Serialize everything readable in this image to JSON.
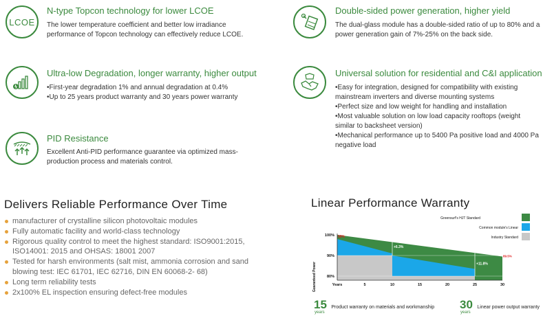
{
  "features": [
    {
      "title": "N-type Topcon technology for lower LCOE",
      "icon": "lcoe-icon",
      "icon_text": "LCOE",
      "body": [
        "The lower temperature coefficient and better low irradiance performance of Topcon technology can effectively reduce LCOE."
      ]
    },
    {
      "title": "Double-sided power generation, higher yield",
      "icon": "bifacial-panel-icon",
      "body": [
        "The dual-glass module has a double-sided ratio of up to 80% and a power generation gain of 7%-25% on the back side."
      ]
    },
    {
      "title": "Ultra-low Degradation, longer warranty, higher output",
      "icon": "degradation-chart-icon",
      "body": [
        "•First-year degradation 1% and annual degradation at 0.4%",
        "•Up to 25 years product warranty and 30 years power warranty"
      ]
    },
    {
      "title": "Universal solution for residential and C&I application",
      "icon": "handshake-icon",
      "body": [
        "•Easy for integration, designed for compatibility with existing mainstream inverters and diverse mounting systems",
        "•Perfect size and low weight for handling and installation",
        "•Most valuable solution on low load capacity rooftops (weight similar to backsheet version)",
        "•Mechanical performance up to 5400 Pa positive load and 4000 Pa negative load"
      ]
    },
    {
      "title": "PID Resistance",
      "icon": "pid-shield-icon",
      "body": [
        "Excellent Anti-PID performance guarantee via optimized mass-production process and materials control."
      ]
    }
  ],
  "performance": {
    "title": "Delivers Reliable Performance Over Time",
    "bullets": [
      "manufacturer of crystalline silicon photovoltaic modules",
      "Fully automatic facility and world-class technology",
      "Rigorous quality control to meet the highest standard: ISO9001:2015, ISO14001: 2015 and OHSAS: 18001 2007",
      "Tested for harsh environments (salt mist, ammonia corrosion and sand blowing test: IEC 61701, IEC 62716, DIN EN 60068-2- 68)",
      "Long term reliability tests",
      "2x100% EL inspection ensuring defect-free modules"
    ]
  },
  "warranty": {
    "title": "Linear Performance Warranty",
    "product_years": "15",
    "product_text": "Product warranty on materials and workmanship",
    "power_years": "30",
    "power_text": "Linear power output warranty",
    "years_word": "years"
  },
  "colors": {
    "accent": "#3b8a3e",
    "hjt": "#3d8a44",
    "linear": "#1ba7e8",
    "industry": "#c8c8c8",
    "red": "#e02020",
    "bullet": "#e6a23c"
  },
  "chart_data": {
    "type": "area",
    "xlabel": "Years",
    "ylabel": "Guaranteed Power",
    "x_ticks": [
      "Years",
      "5",
      "10",
      "15",
      "20",
      "25",
      "30"
    ],
    "y_ticks": [
      "100%",
      "90%",
      "80%"
    ],
    "ylim": [
      78,
      100
    ],
    "xlim": [
      0,
      30
    ],
    "legend_position": "top-right",
    "series": [
      {
        "name": "Greensurf's HJT Standard",
        "x": [
          0,
          30
        ],
        "y": [
          100,
          89.5
        ]
      },
      {
        "name": "Common module's Linear",
        "x": [
          0,
          10,
          10,
          25,
          25
        ],
        "y": [
          98,
          91,
          90,
          83.5,
          80
        ]
      },
      {
        "name": "Industry Standard",
        "x": [
          0,
          10,
          10,
          25
        ],
        "y": [
          90,
          90,
          80,
          80
        ]
      }
    ],
    "annotations": [
      "99%",
      "+6.3%",
      "+11.8%",
      "89.5%"
    ]
  }
}
